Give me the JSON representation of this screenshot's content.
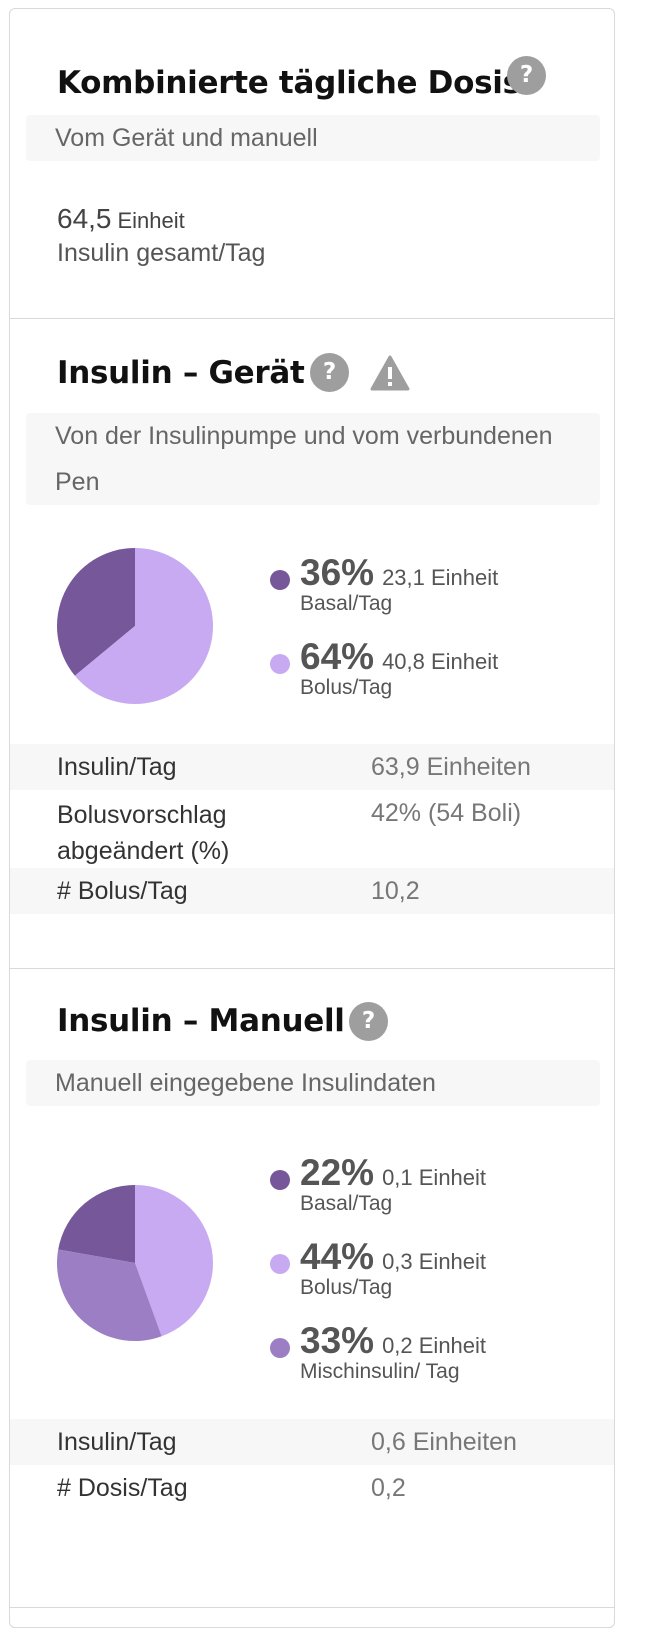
{
  "combined": {
    "title": "Kombinierte tägliche Dosis",
    "subtitle": "Vom Gerät und manuell",
    "total_value": "64,5",
    "total_unit": "Einheit",
    "total_label": "Insulin gesamt/Tag"
  },
  "device": {
    "title": "Insulin – Gerät",
    "subtitle": "Von der Insulinpumpe und vom verbundenen Pen",
    "legend": [
      {
        "pct": "36%",
        "units": "23,1 Einheit",
        "label": "Basal/Tag",
        "color": "#76589a"
      },
      {
        "pct": "64%",
        "units": "40,8 Einheit",
        "label": "Bolus/Tag",
        "color": "#c7aaf1"
      }
    ],
    "pie_values": [
      36,
      64
    ],
    "rows": [
      {
        "key": "Insulin/Tag",
        "value": "63,9 Einheiten"
      },
      {
        "key": "Bolusvorschlag abgeändert (%)",
        "value": "42% (54 Boli)"
      },
      {
        "key": "# Bolus/Tag",
        "value": "10,2"
      }
    ]
  },
  "manual": {
    "title": "Insulin – Manuell",
    "subtitle": "Manuell eingegebene Insulindaten",
    "legend": [
      {
        "pct": "22%",
        "units": "0,1 Einheit",
        "label": "Basal/Tag",
        "color": "#76589a"
      },
      {
        "pct": "44%",
        "units": "0,3 Einheit",
        "label": "Bolus/Tag",
        "color": "#c7aaf1"
      },
      {
        "pct": "33%",
        "units": "0,2 Einheit",
        "label": "Mischinsulin/ Tag",
        "color": "#9c7ec4"
      }
    ],
    "pie_values": [
      22,
      44,
      33
    ],
    "rows": [
      {
        "key": "Insulin/Tag",
        "value": "0,6 Einheiten"
      },
      {
        "key": "# Dosis/Tag",
        "value": "0,2"
      }
    ]
  },
  "icons": {
    "help": "?",
    "warning": "!"
  }
}
